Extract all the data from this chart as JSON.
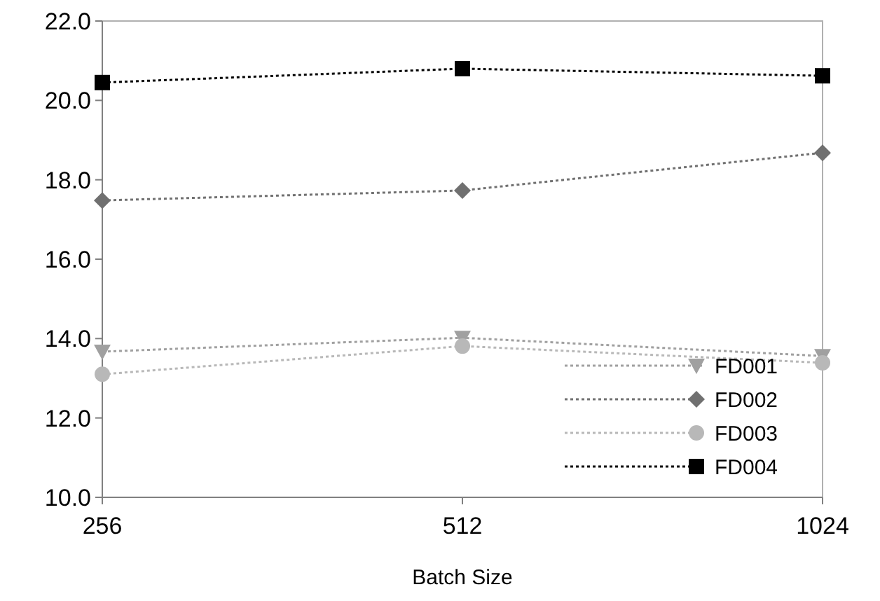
{
  "chart_data": {
    "type": "line",
    "xlabel": "Batch Size",
    "categories": [
      "256",
      "512",
      "1024"
    ],
    "ylim": [
      10,
      22
    ],
    "yticks": [
      {
        "value": 10,
        "label": "10.0"
      },
      {
        "value": 12,
        "label": "12.0"
      },
      {
        "value": 14,
        "label": "14.0"
      },
      {
        "value": 16,
        "label": "16.0"
      },
      {
        "value": 18,
        "label": "18.0"
      },
      {
        "value": 20,
        "label": "20.0"
      },
      {
        "value": 22,
        "label": "22.0"
      }
    ],
    "grid": false,
    "legend": "bottom right",
    "line_style": "dotted",
    "series": [
      {
        "name": "FD001",
        "color": "#a0a0a0",
        "marker": "triangle",
        "values": [
          13.67,
          14.02,
          13.56
        ]
      },
      {
        "name": "FD002",
        "color": "#707070",
        "marker": "diamond",
        "values": [
          17.48,
          17.73,
          18.68
        ]
      },
      {
        "name": "FD003",
        "color": "#b8b8b8",
        "marker": "circle",
        "values": [
          13.1,
          13.81,
          13.39
        ]
      },
      {
        "name": "FD004",
        "color": "#000000",
        "marker": "square",
        "values": [
          20.45,
          20.8,
          20.62
        ]
      }
    ]
  }
}
